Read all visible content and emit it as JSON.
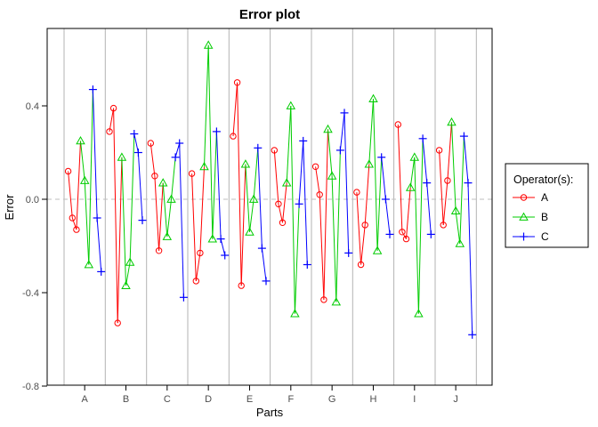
{
  "title": "Error plot",
  "chart_data": {
    "type": "line",
    "title": "Error plot",
    "xlabel": "Parts",
    "ylabel": "Error",
    "categories": [
      "A",
      "B",
      "C",
      "D",
      "E",
      "F",
      "G",
      "H",
      "I",
      "J"
    ],
    "trials_per_operator": 3,
    "yticks": [
      0.4,
      0.0,
      -0.4,
      -0.8
    ],
    "ytick_labels": [
      "0.4",
      "0.0",
      "-0.4",
      "-0.8"
    ],
    "ylim": [
      -0.8,
      0.73
    ],
    "grid": "vertical separators between parts",
    "zero_line": "dashed horizontal at 0",
    "legend_position": "right",
    "legend_title": "Operator(s):",
    "colors": {
      "grid": "#B3B3B3",
      "zero_line": "#BFBFBF",
      "axis": "#000000",
      "tick_text": "#4D4D4D"
    },
    "series": [
      {
        "name": "A",
        "color": "#FF0000",
        "marker": "circle",
        "values_by_part": [
          [
            0.12,
            -0.08,
            -0.13
          ],
          [
            0.29,
            0.39,
            -0.53
          ],
          [
            0.24,
            0.1,
            -0.22
          ],
          [
            0.11,
            -0.35,
            -0.23
          ],
          [
            0.27,
            0.5,
            -0.37
          ],
          [
            0.21,
            -0.02,
            -0.1
          ],
          [
            0.14,
            0.02,
            -0.43
          ],
          [
            0.03,
            -0.28,
            -0.11
          ],
          [
            0.32,
            -0.14,
            -0.17
          ],
          [
            0.21,
            -0.11,
            0.08
          ]
        ]
      },
      {
        "name": "B",
        "color": "#00CC00",
        "marker": "triangle",
        "values_by_part": [
          [
            0.25,
            0.08,
            -0.28
          ],
          [
            0.18,
            -0.37,
            -0.27
          ],
          [
            0.07,
            -0.16,
            0.0
          ],
          [
            0.14,
            0.66,
            -0.17
          ],
          [
            0.15,
            -0.14,
            0.0
          ],
          [
            0.07,
            0.4,
            -0.49
          ],
          [
            0.3,
            0.1,
            -0.44
          ],
          [
            0.15,
            0.43,
            -0.22
          ],
          [
            0.05,
            0.18,
            -0.49
          ],
          [
            0.33,
            -0.05,
            -0.19
          ]
        ]
      },
      {
        "name": "C",
        "color": "#0000FF",
        "marker": "plus",
        "values_by_part": [
          [
            0.47,
            -0.08,
            -0.31
          ],
          [
            0.28,
            0.2,
            -0.09
          ],
          [
            0.18,
            0.24,
            -0.42
          ],
          [
            0.29,
            -0.17,
            -0.24
          ],
          [
            0.22,
            -0.21,
            -0.35
          ],
          [
            -0.02,
            0.25,
            -0.28
          ],
          [
            0.21,
            0.37,
            -0.23
          ],
          [
            0.18,
            0.0,
            -0.15
          ],
          [
            0.26,
            0.07,
            -0.15
          ],
          [
            0.27,
            0.07,
            -0.58
          ]
        ]
      }
    ],
    "connect_within_part": true
  }
}
